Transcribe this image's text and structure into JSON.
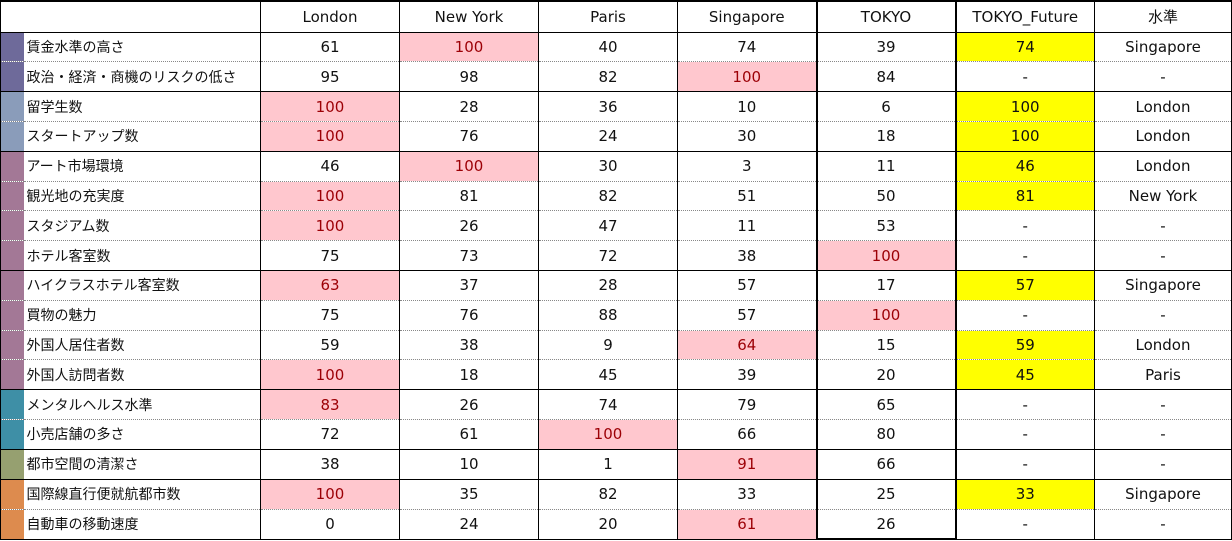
{
  "colors": {
    "max_fill": "#ffc7ce",
    "max_text": "#9c0006",
    "future_fill": "#ffff00"
  },
  "header": [
    "",
    "London",
    "New York",
    "Paris",
    "Singapore",
    "TOKYO",
    "TOKYO_Future",
    "水準"
  ],
  "rows": [
    {
      "label": "賃金水準の高さ",
      "group_color": "#6e6a9a",
      "values": [
        "61",
        "100",
        "40",
        "74",
        "39",
        "74",
        "Singapore"
      ],
      "highlight": [
        2,
        6
      ]
    },
    {
      "label": "政治・経済・商機のリスクの低さ",
      "group_color": "#6e6a9a",
      "values": [
        "95",
        "98",
        "82",
        "100",
        "84",
        "-",
        "-"
      ],
      "highlight": [
        4
      ]
    },
    {
      "label": "留学生数",
      "group_color": "#8a9cba",
      "values": [
        "100",
        "28",
        "36",
        "10",
        "6",
        "100",
        "London"
      ],
      "highlight": [
        1,
        6
      ]
    },
    {
      "label": "スタートアップ数",
      "group_color": "#8a9cba",
      "values": [
        "100",
        "76",
        "24",
        "30",
        "18",
        "100",
        "London"
      ],
      "highlight": [
        1,
        6
      ]
    },
    {
      "label": "アート市場環境",
      "group_color": "#a37896",
      "values": [
        "46",
        "100",
        "30",
        "3",
        "11",
        "46",
        "London"
      ],
      "highlight": [
        2,
        6
      ]
    },
    {
      "label": "観光地の充実度",
      "group_color": "#a37896",
      "values": [
        "100",
        "81",
        "82",
        "51",
        "50",
        "81",
        "New York"
      ],
      "highlight": [
        1,
        6
      ]
    },
    {
      "label": "スタジアム数",
      "group_color": "#a37896",
      "values": [
        "100",
        "26",
        "47",
        "11",
        "53",
        "-",
        "-"
      ],
      "highlight": [
        1
      ]
    },
    {
      "label": "ホテル客室数",
      "group_color": "#a37896",
      "values": [
        "75",
        "73",
        "72",
        "38",
        "100",
        "-",
        "-"
      ],
      "highlight": [
        5
      ]
    },
    {
      "label": "ハイクラスホテル客室数",
      "group_color": "#a37896",
      "values": [
        "63",
        "37",
        "28",
        "57",
        "17",
        "57",
        "Singapore"
      ],
      "highlight": [
        1,
        6
      ]
    },
    {
      "label": "買物の魅力",
      "group_color": "#a37896",
      "values": [
        "75",
        "76",
        "88",
        "57",
        "100",
        "-",
        "-"
      ],
      "highlight": [
        5
      ]
    },
    {
      "label": "外国人居住者数",
      "group_color": "#a37896",
      "values": [
        "59",
        "38",
        "9",
        "64",
        "15",
        "59",
        "London"
      ],
      "highlight": [
        4,
        6
      ]
    },
    {
      "label": "外国人訪問者数",
      "group_color": "#a37896",
      "values": [
        "100",
        "18",
        "45",
        "39",
        "20",
        "45",
        "Paris"
      ],
      "highlight": [
        1,
        6
      ]
    },
    {
      "label": "メンタルヘルス水準",
      "group_color": "#3e8fa6",
      "values": [
        "83",
        "26",
        "74",
        "79",
        "65",
        "-",
        "-"
      ],
      "highlight": [
        1
      ]
    },
    {
      "label": "小売店舗の多さ",
      "group_color": "#3e8fa6",
      "values": [
        "72",
        "61",
        "100",
        "66",
        "80",
        "-",
        "-"
      ],
      "highlight": [
        3
      ]
    },
    {
      "label": "都市空間の清潔さ",
      "group_color": "#96a070",
      "values": [
        "38",
        "10",
        "1",
        "91",
        "66",
        "-",
        "-"
      ],
      "highlight": [
        4
      ]
    },
    {
      "label": "国際線直行便就航都市数",
      "group_color": "#dd8b4e",
      "values": [
        "100",
        "35",
        "82",
        "33",
        "25",
        "33",
        "Singapore"
      ],
      "highlight": [
        1,
        6
      ]
    },
    {
      "label": "自動車の移動速度",
      "group_color": "#dd8b4e",
      "values": [
        "0",
        "24",
        "20",
        "61",
        "26",
        "-",
        "-"
      ],
      "highlight": [
        4
      ]
    }
  ]
}
